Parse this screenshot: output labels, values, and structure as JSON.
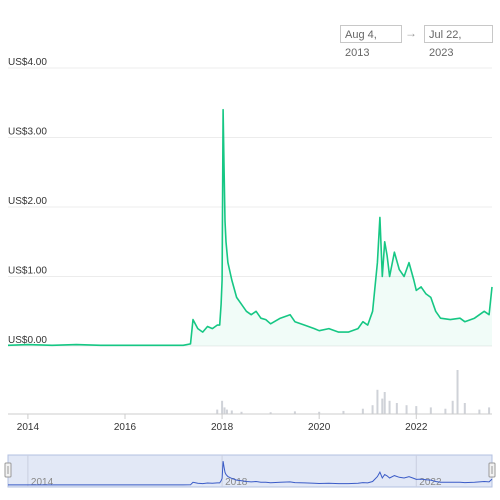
{
  "range_selector": {
    "from": "Aug 4, 2013",
    "to": "Jul 22, 2023",
    "arrow": "→"
  },
  "chart_data": {
    "type": "line",
    "title": "",
    "xlabel": "",
    "ylabel": "",
    "y_ticks": [
      "US$4.00",
      "US$3.00",
      "US$2.00",
      "US$1.00",
      "US$0.00"
    ],
    "y_tick_values": [
      4,
      3,
      2,
      1,
      0
    ],
    "ylim": [
      0,
      4
    ],
    "x_ticks": [
      "2014",
      "2016",
      "2018",
      "2020",
      "2022"
    ],
    "x_tick_values": [
      2014,
      2016,
      2018,
      2020,
      2022
    ],
    "xlim": [
      2013.59,
      2023.56
    ],
    "navigator_ticks": [
      "2014",
      "2018",
      "2022"
    ],
    "grid": true,
    "colors": {
      "price_line": "#16c784",
      "volume_bars": "#cfd2d8",
      "navigator_line": "#3a5bc7",
      "navigator_fill": "#dfe6f5",
      "grid": "#ececec"
    },
    "series": [
      {
        "x": [
          2013.59,
          2014.0,
          2014.5,
          2015.0,
          2015.5,
          2016.0,
          2016.5,
          2017.0,
          2017.2,
          2017.35,
          2017.4,
          2017.5,
          2017.6,
          2017.7,
          2017.8,
          2017.9,
          2017.95,
          2017.98,
          2018.0,
          2018.02,
          2018.04,
          2018.06,
          2018.08,
          2018.12,
          2018.2,
          2018.3,
          2018.4,
          2018.5,
          2018.6,
          2018.7,
          2018.8,
          2018.9,
          2019.0,
          2019.2,
          2019.4,
          2019.5,
          2019.7,
          2019.9,
          2020.0,
          2020.2,
          2020.4,
          2020.6,
          2020.8,
          2020.9,
          2021.0,
          2021.1,
          2021.2,
          2021.25,
          2021.3,
          2021.35,
          2021.4,
          2021.45,
          2021.55,
          2021.65,
          2021.75,
          2021.85,
          2021.95,
          2022.0,
          2022.1,
          2022.2,
          2022.3,
          2022.4,
          2022.5,
          2022.7,
          2022.9,
          2023.0,
          2023.2,
          2023.4,
          2023.5,
          2023.56
        ],
        "values": [
          0.01,
          0.02,
          0.01,
          0.02,
          0.01,
          0.01,
          0.01,
          0.01,
          0.01,
          0.03,
          0.38,
          0.25,
          0.2,
          0.28,
          0.25,
          0.3,
          0.3,
          0.6,
          0.95,
          3.4,
          2.6,
          1.8,
          1.5,
          1.2,
          0.95,
          0.7,
          0.6,
          0.5,
          0.45,
          0.5,
          0.4,
          0.38,
          0.32,
          0.4,
          0.45,
          0.35,
          0.3,
          0.25,
          0.22,
          0.25,
          0.2,
          0.2,
          0.25,
          0.35,
          0.3,
          0.5,
          1.2,
          1.85,
          1.0,
          1.5,
          1.3,
          1.0,
          1.35,
          1.1,
          1.0,
          1.2,
          0.95,
          0.8,
          0.85,
          0.75,
          0.7,
          0.5,
          0.4,
          0.38,
          0.4,
          0.35,
          0.4,
          0.5,
          0.45,
          0.85
        ]
      }
    ],
    "volume": {
      "x": [
        2017.9,
        2018.0,
        2018.05,
        2018.1,
        2018.2,
        2018.4,
        2019.0,
        2019.5,
        2020.0,
        2020.5,
        2020.9,
        2021.1,
        2021.2,
        2021.3,
        2021.35,
        2021.45,
        2021.6,
        2021.8,
        2022.0,
        2022.3,
        2022.6,
        2022.75,
        2022.85,
        2023.0,
        2023.3,
        2023.5
      ],
      "values": [
        0.1,
        0.3,
        0.15,
        0.1,
        0.08,
        0.05,
        0.04,
        0.06,
        0.05,
        0.07,
        0.12,
        0.2,
        0.55,
        0.35,
        0.5,
        0.3,
        0.25,
        0.2,
        0.18,
        0.15,
        0.12,
        0.3,
        1.0,
        0.25,
        0.1,
        0.15
      ]
    }
  }
}
